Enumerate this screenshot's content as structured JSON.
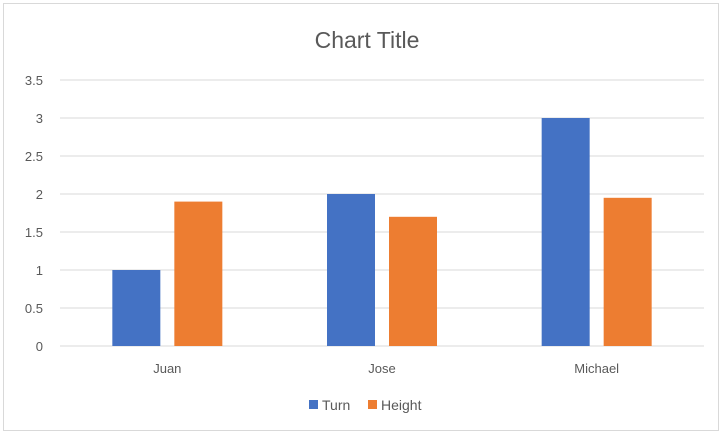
{
  "chart_data": {
    "type": "bar",
    "title": "Chart Title",
    "xlabel": "",
    "ylabel": "",
    "categories": [
      "Juan",
      "Jose",
      "Michael"
    ],
    "series": [
      {
        "name": "Turn",
        "values": [
          1,
          2,
          3
        ],
        "color": "#4472c4"
      },
      {
        "name": "Height",
        "values": [
          1.9,
          1.7,
          1.95
        ],
        "color": "#ed7d31"
      }
    ],
    "ylim": [
      0,
      3.5
    ],
    "y_ticks": [
      "0",
      "0.5",
      "1",
      "1.5",
      "2",
      "2.5",
      "3",
      "3.5"
    ],
    "grid": true,
    "legend_position": "bottom"
  },
  "colors": {
    "gridline": "#d9d9d9",
    "text": "#595959"
  }
}
